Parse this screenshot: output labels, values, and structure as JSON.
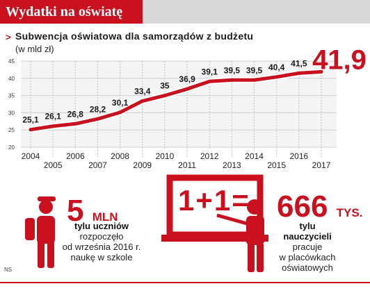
{
  "header": {
    "title": "Wydatki na oświatę"
  },
  "chart_data": {
    "type": "line",
    "title": "Subwencja oświatowa dla samorządów z budżetu",
    "unit_label": "(w mld zł)",
    "x": [
      2004,
      2005,
      2006,
      2007,
      2008,
      2009,
      2010,
      2011,
      2012,
      2013,
      2014,
      2015,
      2016,
      2017
    ],
    "x_labels": [
      "2004",
      "2005",
      "2006",
      "2007",
      "2008",
      "2009",
      "2010",
      "2011",
      "2012",
      "2013",
      "2014",
      "2015",
      "2016",
      "2017"
    ],
    "values": [
      25.1,
      26.1,
      26.8,
      28.2,
      30.1,
      33.4,
      35,
      36.9,
      39.1,
      39.5,
      39.5,
      40.4,
      41.5,
      41.9
    ],
    "value_labels": [
      "25,1",
      "26,1",
      "26,8",
      "28,2",
      "30,1",
      "33,4",
      "35",
      "36,9",
      "39,1",
      "39,5",
      "39,5",
      "40,4",
      "41,5",
      "41,9"
    ],
    "ylim": [
      20,
      45
    ],
    "yticks": [
      20,
      25,
      30,
      35,
      40,
      45
    ],
    "ytick_labels": [
      "20",
      "25",
      "30",
      "35",
      "40",
      "45"
    ],
    "grid": true,
    "line_color": "#c8101e",
    "highlight_color": "#c8101e"
  },
  "students": {
    "big": "5",
    "unit": "MLN",
    "bold": "tylu uczniów",
    "lines": [
      "rozpoczęło",
      "od września 2016 r.",
      "naukę w szkole"
    ]
  },
  "teachers": {
    "big": "666",
    "unit": "TYS.",
    "bold_lines": [
      "tylu",
      "nauczycieli"
    ],
    "lines": [
      "pracuje",
      "w placówkach",
      "oświatowych"
    ]
  },
  "board": {
    "text": "1+1="
  },
  "footer": {
    "source": "NS"
  },
  "colors": {
    "accent": "#c8101e",
    "band": "#d9d9d9"
  }
}
